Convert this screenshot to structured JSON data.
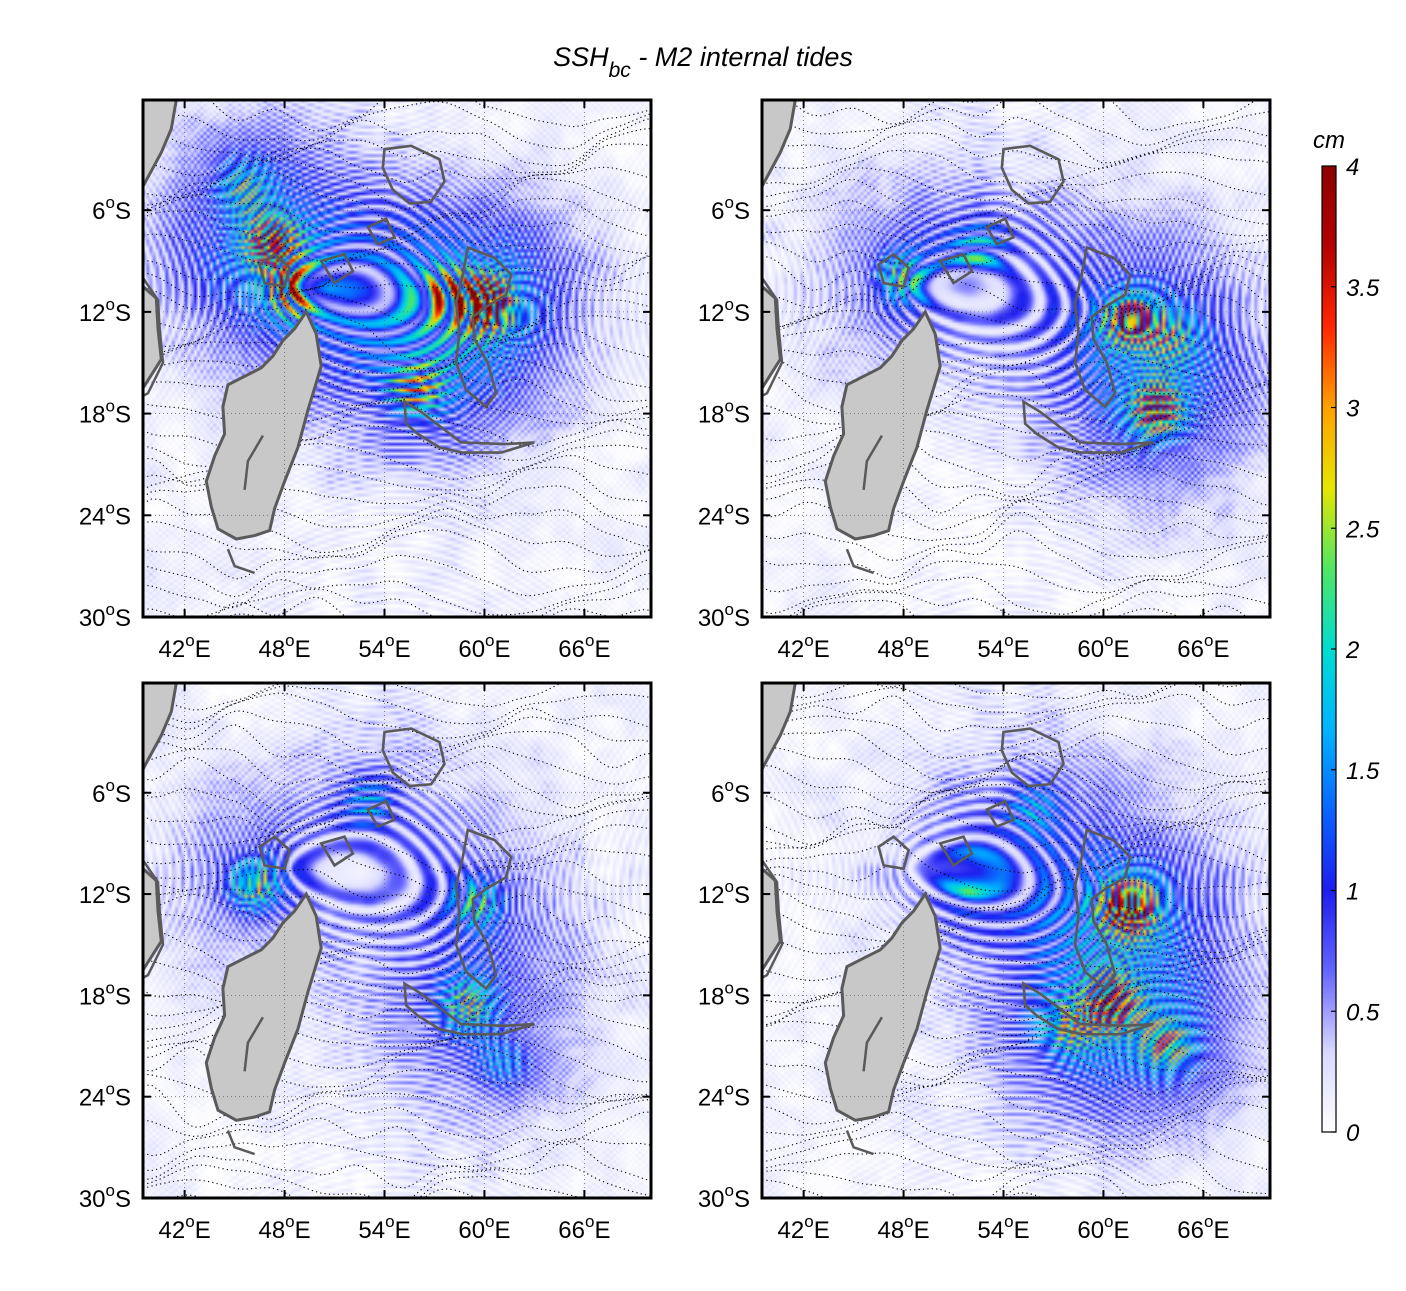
{
  "chart_data": {
    "type": "heatmap",
    "title": {
      "main": "SSH",
      "subscript": "bc",
      "rest": " - M2 internal tides"
    },
    "lon_range": [
      39.5,
      70
    ],
    "lat_range": [
      -30,
      0.5
    ],
    "x_ticks": [
      {
        "value": 42,
        "label": "42",
        "hemi": "E"
      },
      {
        "value": 48,
        "label": "48",
        "hemi": "E"
      },
      {
        "value": 54,
        "label": "54",
        "hemi": "E"
      },
      {
        "value": 60,
        "label": "60",
        "hemi": "E"
      },
      {
        "value": 66,
        "label": "66",
        "hemi": "E"
      }
    ],
    "y_ticks": [
      {
        "value": -6,
        "label": "6",
        "hemi": "S"
      },
      {
        "value": -12,
        "label": "12",
        "hemi": "S"
      },
      {
        "value": -18,
        "label": "18",
        "hemi": "S"
      },
      {
        "value": -24,
        "label": "24",
        "hemi": "S"
      },
      {
        "value": -30,
        "label": "30",
        "hemi": "S"
      }
    ],
    "degree_symbol": "o",
    "colorbar": {
      "unit": "cm",
      "min": 0,
      "max": 4,
      "ticks": [
        {
          "value": 0,
          "label": "0"
        },
        {
          "value": 0.5,
          "label": "0.5"
        },
        {
          "value": 1,
          "label": "1"
        },
        {
          "value": 1.5,
          "label": "1.5"
        },
        {
          "value": 2,
          "label": "2"
        },
        {
          "value": 2.5,
          "label": "2.5"
        },
        {
          "value": 3,
          "label": "3"
        },
        {
          "value": 3.5,
          "label": "3.5"
        },
        {
          "value": 4,
          "label": "4"
        }
      ],
      "colors": [
        "#ffffff",
        "#d8d8ff",
        "#6464ff",
        "#1e1eee",
        "#0a64ff",
        "#00b4ff",
        "#00dcd2",
        "#50e664",
        "#e6e600",
        "#ffa000",
        "#ff2800",
        "#b40000",
        "#8c0000"
      ]
    },
    "colors": {
      "land": "#c8c8c8",
      "coast": "#5a5a5a",
      "phase_lines": "#000000"
    },
    "panels": [
      {
        "id": "top-left",
        "hotspots": [
          {
            "lon": 60,
            "lat": -11.5,
            "amp": 3.9
          },
          {
            "lon": 47.2,
            "lat": -8.0,
            "amp": 2.6
          },
          {
            "lon": 48.6,
            "lat": -10.8,
            "amp": 2.5
          },
          {
            "lon": 56.0,
            "lat": -16.5,
            "amp": 2.0
          },
          {
            "lon": 57.5,
            "lat": -11.0,
            "amp": 1.8
          },
          {
            "lon": 45.5,
            "lat": -4.5,
            "amp": 1.3
          }
        ]
      },
      {
        "id": "top-right",
        "hotspots": [
          {
            "lon": 63.2,
            "lat": -17.8,
            "amp": 2.6
          },
          {
            "lon": 61.5,
            "lat": -12.5,
            "amp": 2.5
          },
          {
            "lon": 48.0,
            "lat": -10.0,
            "amp": 1.8
          },
          {
            "lon": 52.5,
            "lat": -8.5,
            "amp": 1.5
          },
          {
            "lon": 64.0,
            "lat": -13.5,
            "amp": 1.4
          }
        ]
      },
      {
        "id": "bottom-left",
        "hotspots": [
          {
            "lon": 46.2,
            "lat": -11.5,
            "amp": 2.2
          },
          {
            "lon": 59.0,
            "lat": -18.5,
            "amp": 1.9
          },
          {
            "lon": 59.5,
            "lat": -12.5,
            "amp": 1.7
          },
          {
            "lon": 53.0,
            "lat": -6.5,
            "amp": 1.2
          },
          {
            "lon": 61.0,
            "lat": -22.0,
            "amp": 1.0
          }
        ]
      },
      {
        "id": "bottom-right",
        "hotspots": [
          {
            "lon": 61.5,
            "lat": -12.8,
            "amp": 3.7
          },
          {
            "lon": 60.5,
            "lat": -18.5,
            "amp": 2.4
          },
          {
            "lon": 52.0,
            "lat": -11.0,
            "amp": 1.8
          },
          {
            "lon": 63.8,
            "lat": -21.0,
            "amp": 1.8
          },
          {
            "lon": 58.0,
            "lat": -20.0,
            "amp": 1.5
          },
          {
            "lon": 56.0,
            "lat": -7.0,
            "amp": 1.2
          }
        ]
      }
    ]
  }
}
